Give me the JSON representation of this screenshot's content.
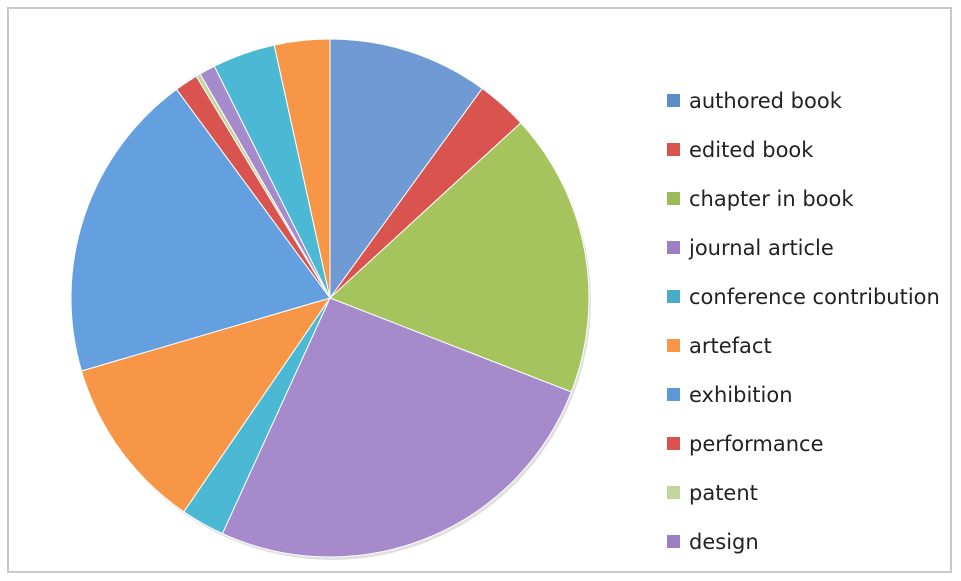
{
  "chart_data": {
    "type": "pie",
    "title": "",
    "legend_position": "right",
    "start_angle_deg": 0,
    "direction": "clockwise",
    "categories": [
      "authored book",
      "edited book",
      "chapter in book",
      "journal article",
      "conference contribution",
      "artefact",
      "exhibition",
      "performance",
      "patent",
      "design",
      "design",
      "conference contribution",
      "artefact"
    ],
    "legend": [
      {
        "label": "authored book",
        "color": "#5b8fc9"
      },
      {
        "label": "edited book",
        "color": "#d9534f"
      },
      {
        "label": "chapter in book",
        "color": "#9bbb59"
      },
      {
        "label": "journal article",
        "color": "#9b7fc2"
      },
      {
        "label": "conference contribution",
        "color": "#4bacc6"
      },
      {
        "label": "artefact",
        "color": "#f79646"
      },
      {
        "label": "exhibition",
        "color": "#5b9bd5"
      },
      {
        "label": "performance",
        "color": "#d9534f"
      },
      {
        "label": "patent",
        "color": "#c3d69b"
      },
      {
        "label": "design",
        "color": "#9b7fc2"
      }
    ],
    "values": [
      11.0,
      3.5,
      19.5,
      28.5,
      3.0,
      12.0,
      21.4,
      1.6,
      0.3,
      1.1,
      0.0,
      4.3,
      3.8
    ],
    "colors": [
      "#6f9ad3",
      "#d9534f",
      "#a5c45e",
      "#a58bcb",
      "#4bb8d4",
      "#f79646",
      "#64a0e0",
      "#d9534f",
      "#c3d69b",
      "#a58bcb",
      "#a58bcb",
      "#4bb8d4",
      "#f79646"
    ]
  }
}
